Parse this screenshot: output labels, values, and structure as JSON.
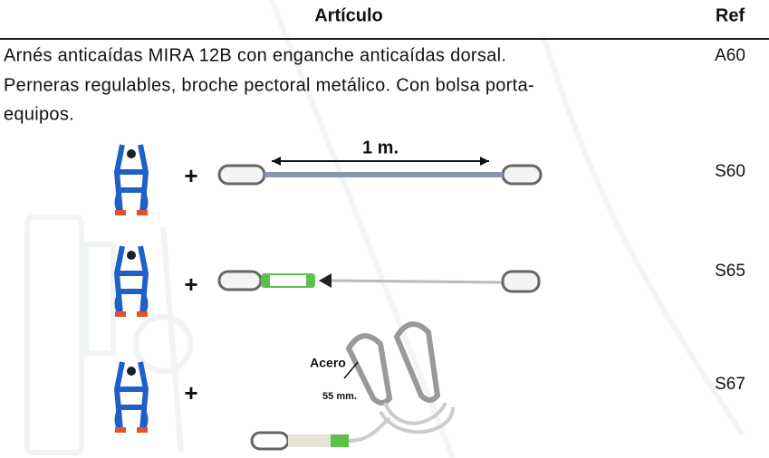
{
  "header": {
    "article": "Artículo",
    "ref": "Ref"
  },
  "rows": [
    {
      "description": [
        "Arnés anticaídas MIRA 12B con enganche anticaídas dorsal.",
        "Perneras regulables, broche pectoral metálico. Con bolsa porta-",
        "equipos."
      ],
      "ref": "A60"
    },
    {
      "plus": "+",
      "length": "1 m.",
      "ref": "S60"
    },
    {
      "plus": "+",
      "ref": "S65"
    },
    {
      "plus": "+",
      "material": "Acero",
      "size": "55 mm.",
      "ref": "S67"
    }
  ]
}
